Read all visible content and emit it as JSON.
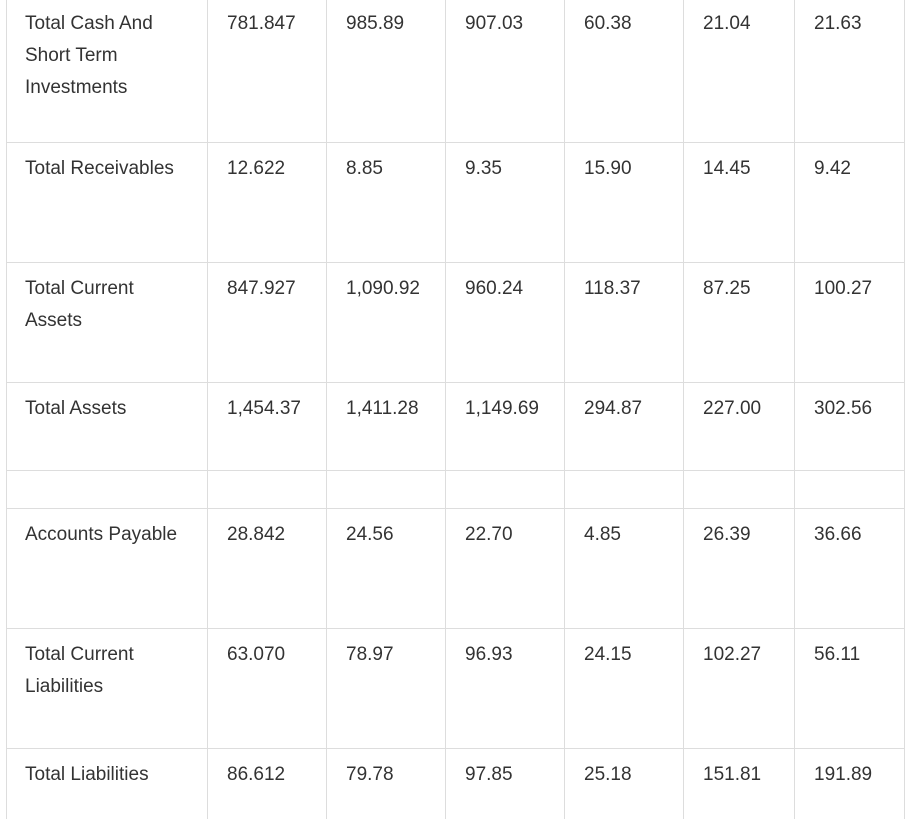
{
  "table": {
    "rows": [
      {
        "label": "Total Cash And Short Term Investments",
        "values": [
          "781.847",
          "985.89",
          "907.03",
          "60.38",
          "21.04",
          "21.63"
        ]
      },
      {
        "label": "Total Receivables",
        "values": [
          "12.622",
          "8.85",
          "9.35",
          "15.90",
          "14.45",
          "9.42"
        ]
      },
      {
        "label": "Total Current Assets",
        "values": [
          "847.927",
          "1,090.92",
          "960.24",
          "118.37",
          "87.25",
          "100.27"
        ]
      },
      {
        "label": "Total Assets",
        "values": [
          "1,454.37",
          "1,411.28",
          "1,149.69",
          "294.87",
          "227.00",
          "302.56"
        ]
      },
      {
        "label": "",
        "values": [
          "",
          "",
          "",
          "",
          "",
          ""
        ]
      },
      {
        "label": "Accounts Payable",
        "values": [
          "28.842",
          "24.56",
          "22.70",
          "4.85",
          "26.39",
          "36.66"
        ]
      },
      {
        "label": "Total Current Liabilities",
        "values": [
          "63.070",
          "78.97",
          "96.93",
          "24.15",
          "102.27",
          "56.11"
        ]
      },
      {
        "label": "Total Liabilities",
        "values": [
          "86.612",
          "79.78",
          "97.85",
          "25.18",
          "151.81",
          "191.89"
        ]
      }
    ]
  }
}
